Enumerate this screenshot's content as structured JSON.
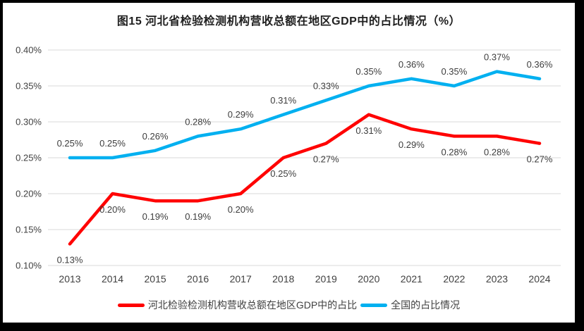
{
  "title": "图15 河北省检验检测机构营收总额在地区GDP中的占比情况（%）",
  "legend": [
    {
      "label": "河北检验检测机构营收总额在地区GDP中的占比",
      "color": "#FF0000"
    },
    {
      "label": "全国的占比情况",
      "color": "#00B0F0"
    }
  ],
  "chart_data": {
    "type": "line",
    "title": "图15 河北省检验检测机构营收总额在地区GDP中的占比情况（%）",
    "categories": [
      "2013",
      "2014",
      "2015",
      "2016",
      "2017",
      "2018",
      "2019",
      "2020",
      "2021",
      "2022",
      "2023",
      "2024"
    ],
    "series": [
      {
        "name": "河北检验检测机构营收总额在地区GDP中的占比",
        "color": "#FF0000",
        "values": [
          0.13,
          0.2,
          0.19,
          0.19,
          0.2,
          0.25,
          0.27,
          0.31,
          0.29,
          0.28,
          0.28,
          0.27
        ],
        "data_labels": [
          "0.13%",
          "0.20%",
          "0.19%",
          "0.19%",
          "0.20%",
          "0.25%",
          "0.27%",
          "0.31%",
          "0.29%",
          "0.28%",
          "0.28%",
          "0.27%"
        ],
        "label_position": "below"
      },
      {
        "name": "全国的占比情况",
        "color": "#00B0F0",
        "values": [
          0.25,
          0.25,
          0.26,
          0.28,
          0.29,
          0.31,
          0.33,
          0.35,
          0.36,
          0.35,
          0.37,
          0.36
        ],
        "data_labels": [
          "0.25%",
          "0.25%",
          "0.26%",
          "0.28%",
          "0.29%",
          "0.31%",
          "0.33%",
          "0.35%",
          "0.36%",
          "0.35%",
          "0.37%",
          "0.36%"
        ],
        "label_position": "above"
      }
    ],
    "y_axis": {
      "min": 0.1,
      "max": 0.4,
      "step": 0.05,
      "tick_labels": [
        "0.10%",
        "0.15%",
        "0.20%",
        "0.25%",
        "0.30%",
        "0.35%",
        "0.40%"
      ]
    },
    "xlabel": "",
    "ylabel": "",
    "grid": true,
    "legend_position": "bottom"
  },
  "colors": {
    "grid_line": "#D9D9D9",
    "axis_text": "#404040",
    "title_text": "#1F1F1F",
    "background": "#FFFFFF",
    "frame": "#000000"
  }
}
